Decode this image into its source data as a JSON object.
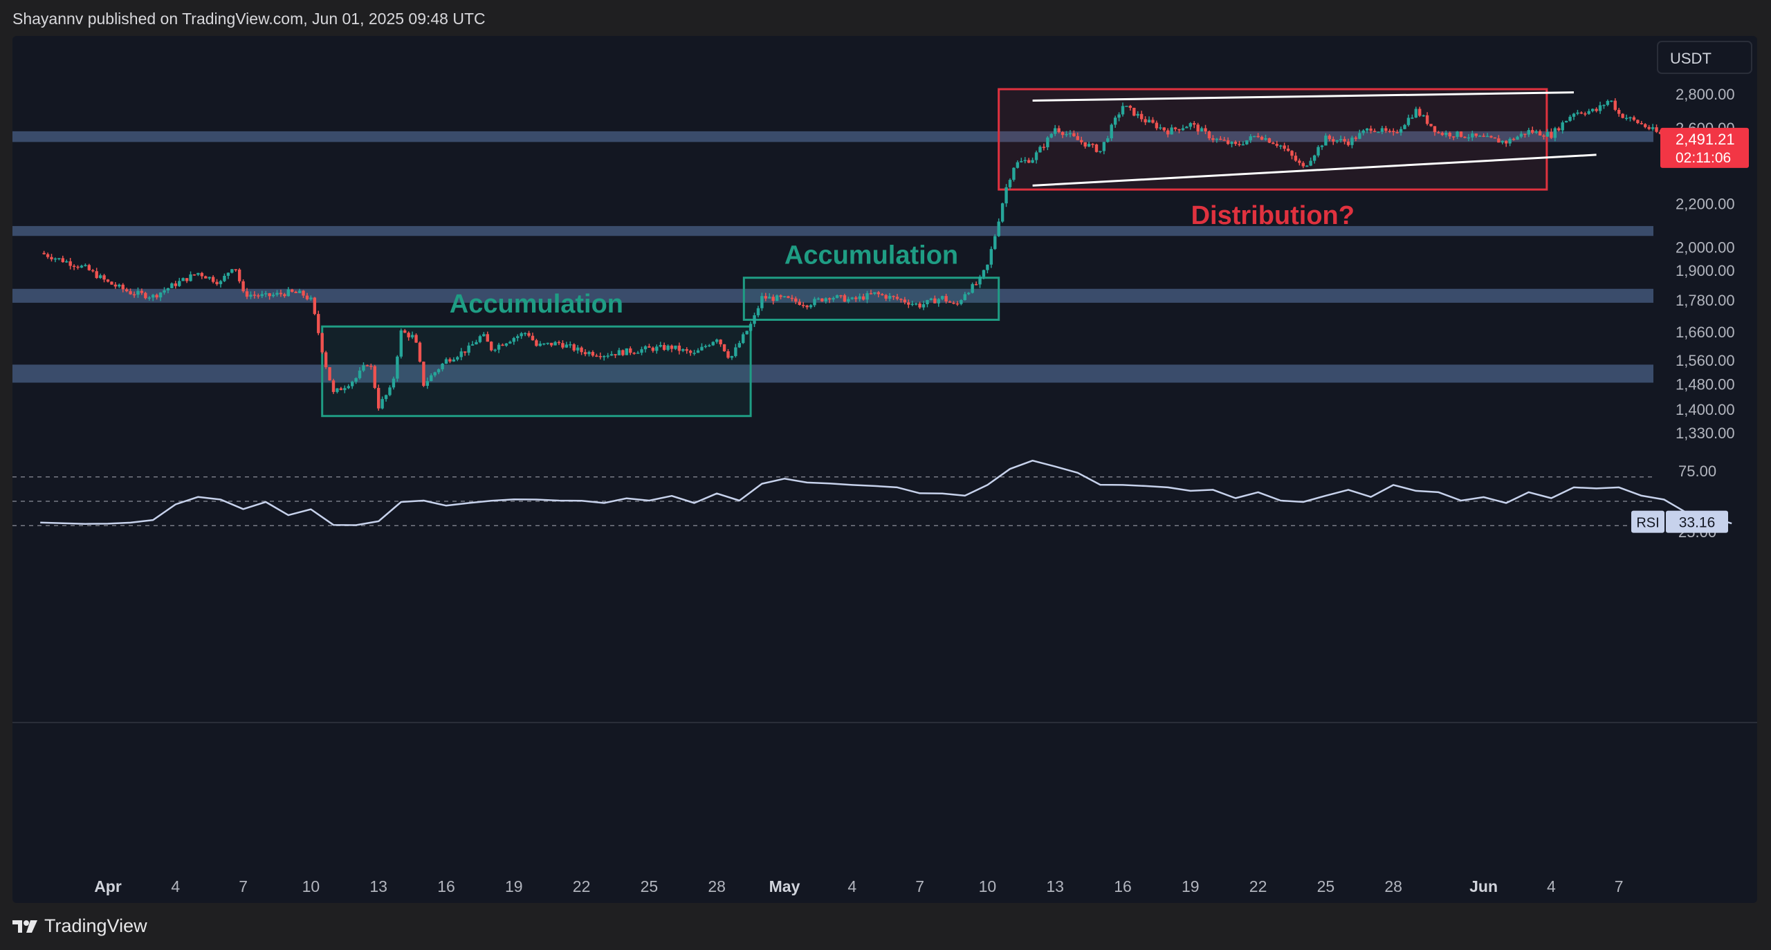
{
  "header": {
    "publisher_line": "Shayannv published on TradingView.com, Jun 01, 2025 09:48 UTC"
  },
  "footer": {
    "brand": "TradingView",
    "logo_icon": "tradingview-logo-icon"
  },
  "colors": {
    "background": "#131722",
    "page_background": "#1f1f21",
    "candle_up": "#26a69a",
    "candle_down": "#ef5350",
    "accumulation_box": "#1f9d84",
    "distribution_box": "#e0323f",
    "level_band": "#5b78a8",
    "rsi_line": "#c7d2ec",
    "trend_line": "#ffffff",
    "price_badge": "#f23645"
  },
  "chart_data": {
    "type": "candlestick",
    "currency_label": "USDT",
    "price_ticks": [
      "2,800.00",
      "2,600.00",
      "2,200.00",
      "2,000.00",
      "1,900.00",
      "1,780.00",
      "1,660.00",
      "1,560.00",
      "1,480.00",
      "1,400.00",
      "1,330.00"
    ],
    "price_tick_values": [
      2800,
      2600,
      2200,
      2000,
      1900,
      1780,
      1660,
      1560,
      1480,
      1400,
      1330
    ],
    "last_price": "2,491.21",
    "countdown": "02:11:06",
    "x_ticks": [
      "Apr",
      "4",
      "7",
      "10",
      "13",
      "16",
      "19",
      "22",
      "25",
      "28",
      "May",
      "4",
      "7",
      "10",
      "13",
      "16",
      "19",
      "22",
      "25",
      "28",
      "Jun",
      "4",
      "7"
    ],
    "x_tick_days": [
      1,
      4,
      7,
      10,
      13,
      16,
      19,
      22,
      25,
      28,
      31,
      34,
      37,
      40,
      43,
      46,
      49,
      52,
      55,
      58,
      62,
      65,
      68
    ],
    "price_path": [
      [
        -2,
        1975
      ],
      [
        0,
        1910
      ],
      [
        1,
        1850
      ],
      [
        2,
        1810
      ],
      [
        3,
        1795
      ],
      [
        4,
        1845
      ],
      [
        5,
        1890
      ],
      [
        6,
        1850
      ],
      [
        6.6,
        1930
      ],
      [
        7,
        1805
      ],
      [
        8,
        1795
      ],
      [
        9,
        1810
      ],
      [
        9.6,
        1805
      ],
      [
        10,
        1780
      ],
      [
        10.6,
        1560
      ],
      [
        11,
        1450
      ],
      [
        12,
        1500
      ],
      [
        12.6,
        1560
      ],
      [
        13,
        1410
      ],
      [
        13.6,
        1470
      ],
      [
        14,
        1660
      ],
      [
        14.6,
        1640
      ],
      [
        15,
        1480
      ],
      [
        16,
        1560
      ],
      [
        17,
        1600
      ],
      [
        17.6,
        1650
      ],
      [
        18,
        1600
      ],
      [
        19,
        1640
      ],
      [
        19.6,
        1660
      ],
      [
        20,
        1610
      ],
      [
        21,
        1620
      ],
      [
        22,
        1590
      ],
      [
        23,
        1580
      ],
      [
        24,
        1590
      ],
      [
        25,
        1600
      ],
      [
        26,
        1605
      ],
      [
        27,
        1580
      ],
      [
        28,
        1640
      ],
      [
        28.6,
        1565
      ],
      [
        29,
        1620
      ],
      [
        29.6,
        1700
      ],
      [
        30,
        1790
      ],
      [
        31,
        1785
      ],
      [
        32,
        1765
      ],
      [
        33,
        1795
      ],
      [
        34,
        1780
      ],
      [
        35,
        1805
      ],
      [
        36,
        1785
      ],
      [
        37,
        1760
      ],
      [
        38,
        1790
      ],
      [
        38.6,
        1755
      ],
      [
        39,
        1810
      ],
      [
        39.6,
        1850
      ],
      [
        40,
        1920
      ],
      [
        40.4,
        2080
      ],
      [
        40.8,
        2270
      ],
      [
        41.2,
        2400
      ],
      [
        42,
        2430
      ],
      [
        42.6,
        2520
      ],
      [
        43,
        2600
      ],
      [
        44,
        2530
      ],
      [
        45,
        2470
      ],
      [
        46,
        2730
      ],
      [
        47,
        2640
      ],
      [
        48,
        2580
      ],
      [
        49,
        2620
      ],
      [
        50,
        2540
      ],
      [
        51,
        2500
      ],
      [
        52,
        2560
      ],
      [
        53,
        2500
      ],
      [
        54,
        2380
      ],
      [
        55,
        2540
      ],
      [
        56,
        2520
      ],
      [
        57,
        2600
      ],
      [
        58,
        2560
      ],
      [
        59,
        2700
      ],
      [
        60,
        2570
      ],
      [
        61,
        2560
      ],
      [
        62,
        2540
      ],
      [
        63,
        2520
      ],
      [
        64,
        2580
      ],
      [
        65,
        2560
      ],
      [
        66,
        2690
      ],
      [
        67,
        2700
      ],
      [
        67.6,
        2770
      ],
      [
        68,
        2680
      ],
      [
        69,
        2620
      ],
      [
        70,
        2550
      ],
      [
        71,
        2510
      ],
      [
        72,
        2491
      ]
    ],
    "rsi": {
      "label": "RSI",
      "value": "33.16",
      "current": 33.16,
      "ticks": [
        "75.00",
        "25.00"
      ],
      "tick_values": [
        75,
        25
      ],
      "guide_levels": [
        70,
        50,
        30
      ],
      "path": [
        [
          -2,
          34
        ],
        [
          0,
          30
        ],
        [
          1,
          33
        ],
        [
          2,
          31
        ],
        [
          3,
          36
        ],
        [
          4,
          46
        ],
        [
          5,
          55
        ],
        [
          6,
          50
        ],
        [
          7,
          45
        ],
        [
          8,
          48
        ],
        [
          9,
          40
        ],
        [
          10,
          42
        ],
        [
          11,
          32
        ],
        [
          12,
          29
        ],
        [
          13,
          35
        ],
        [
          14,
          48
        ],
        [
          15,
          52
        ],
        [
          16,
          45
        ],
        [
          17,
          50
        ],
        [
          18,
          49
        ],
        [
          19,
          53
        ],
        [
          20,
          50
        ],
        [
          21,
          52
        ],
        [
          22,
          49
        ],
        [
          23,
          50
        ],
        [
          24,
          51
        ],
        [
          25,
          52
        ],
        [
          26,
          53
        ],
        [
          27,
          50
        ],
        [
          28,
          55
        ],
        [
          29,
          52
        ],
        [
          30,
          63
        ],
        [
          31,
          70
        ],
        [
          32,
          64
        ],
        [
          33,
          66
        ],
        [
          34,
          62
        ],
        [
          35,
          64
        ],
        [
          36,
          60
        ],
        [
          37,
          58
        ],
        [
          38,
          55
        ],
        [
          39,
          56
        ],
        [
          40,
          62
        ],
        [
          41,
          78
        ],
        [
          42,
          82
        ],
        [
          43,
          80
        ],
        [
          44,
          72
        ],
        [
          45,
          65
        ],
        [
          46,
          62
        ],
        [
          47,
          64
        ],
        [
          48,
          60
        ],
        [
          49,
          60
        ],
        [
          50,
          58
        ],
        [
          51,
          54
        ],
        [
          52,
          56
        ],
        [
          53,
          52
        ],
        [
          54,
          48
        ],
        [
          55,
          56
        ],
        [
          56,
          58
        ],
        [
          57,
          55
        ],
        [
          58,
          62
        ],
        [
          59,
          60
        ],
        [
          60,
          56
        ],
        [
          61,
          52
        ],
        [
          62,
          52
        ],
        [
          63,
          50
        ],
        [
          64,
          56
        ],
        [
          65,
          54
        ],
        [
          66,
          60
        ],
        [
          67,
          62
        ],
        [
          68,
          60
        ],
        [
          69,
          56
        ],
        [
          70,
          50
        ],
        [
          71,
          42
        ],
        [
          72,
          36
        ],
        [
          73,
          33.16
        ]
      ]
    },
    "level_bands": [
      [
        2520,
        2580
      ],
      [
        2050,
        2095
      ],
      [
        1770,
        1825
      ],
      [
        1485,
        1545
      ]
    ],
    "boxes": [
      {
        "label": "Accumulation",
        "kind": "accumulation",
        "x0": 10.5,
        "x1": 29.5,
        "y0": 1380,
        "y1": 1680
      },
      {
        "label": "Accumulation",
        "kind": "accumulation",
        "x0": 29.2,
        "x1": 40.5,
        "y0": 1705,
        "y1": 1870
      },
      {
        "label": "Distribution?",
        "kind": "distribution",
        "x0": 40.5,
        "x1": 64.8,
        "y0": 2270,
        "y1": 2830
      }
    ],
    "trend_lines": [
      {
        "x0": 42,
        "y0": 2760,
        "x1": 66,
        "y1": 2810
      },
      {
        "x0": 42,
        "y0": 2290,
        "x1": 67,
        "y1": 2450
      }
    ]
  }
}
